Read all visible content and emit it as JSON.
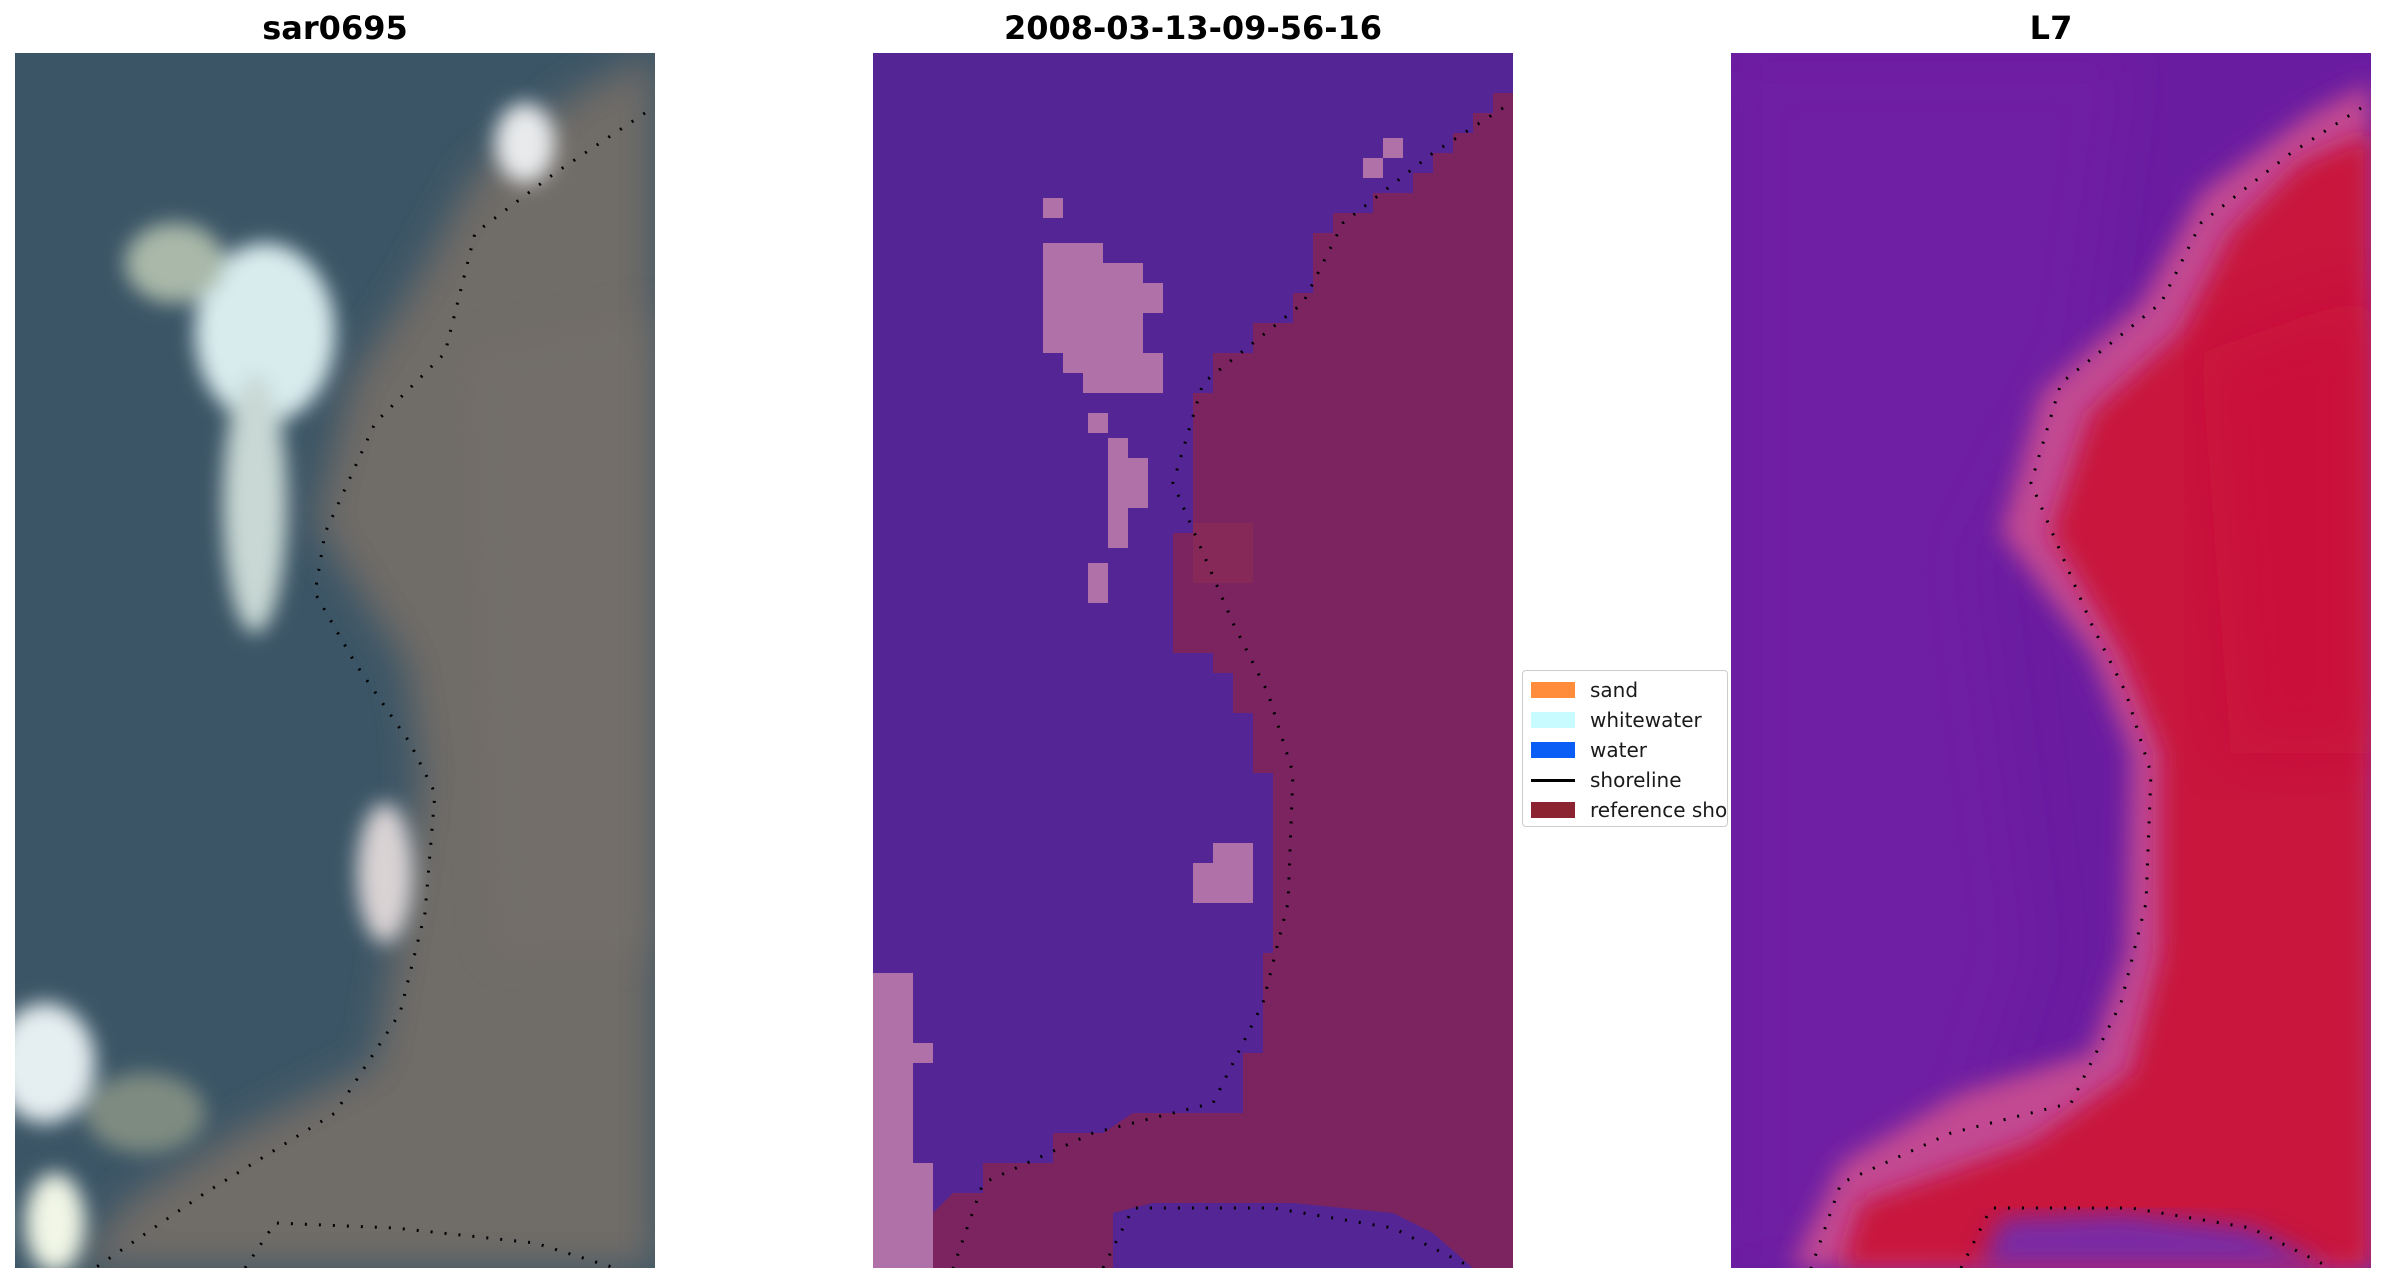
{
  "panels": [
    {
      "title": "sar0695"
    },
    {
      "title": "2008-03-13-09-56-16"
    },
    {
      "title": "L7"
    }
  ],
  "legend": {
    "items": [
      {
        "label": "sand",
        "color": "#ff8c3a",
        "kind": "patch"
      },
      {
        "label": "whitewater",
        "color": "#c8fbff",
        "kind": "patch"
      },
      {
        "label": "water",
        "color": "#0a5ef5",
        "kind": "patch"
      },
      {
        "label": "shoreline",
        "color": "#000000",
        "kind": "line"
      },
      {
        "label": "reference shoreline",
        "color": "#8b2430",
        "kind": "patch"
      }
    ]
  },
  "colors": {
    "rgb_water": "#3d5566",
    "rgb_land": "#6b6a66",
    "rgb_whitewater": "#dfeef0",
    "class_water": "#542595",
    "class_land": "#7b2460",
    "class_whitewater_overlay": "#b070a8",
    "index_water": "#6a1ca0",
    "index_land": "#c8143c",
    "index_transition": "#c84c90",
    "shoreline": "#000000"
  }
}
